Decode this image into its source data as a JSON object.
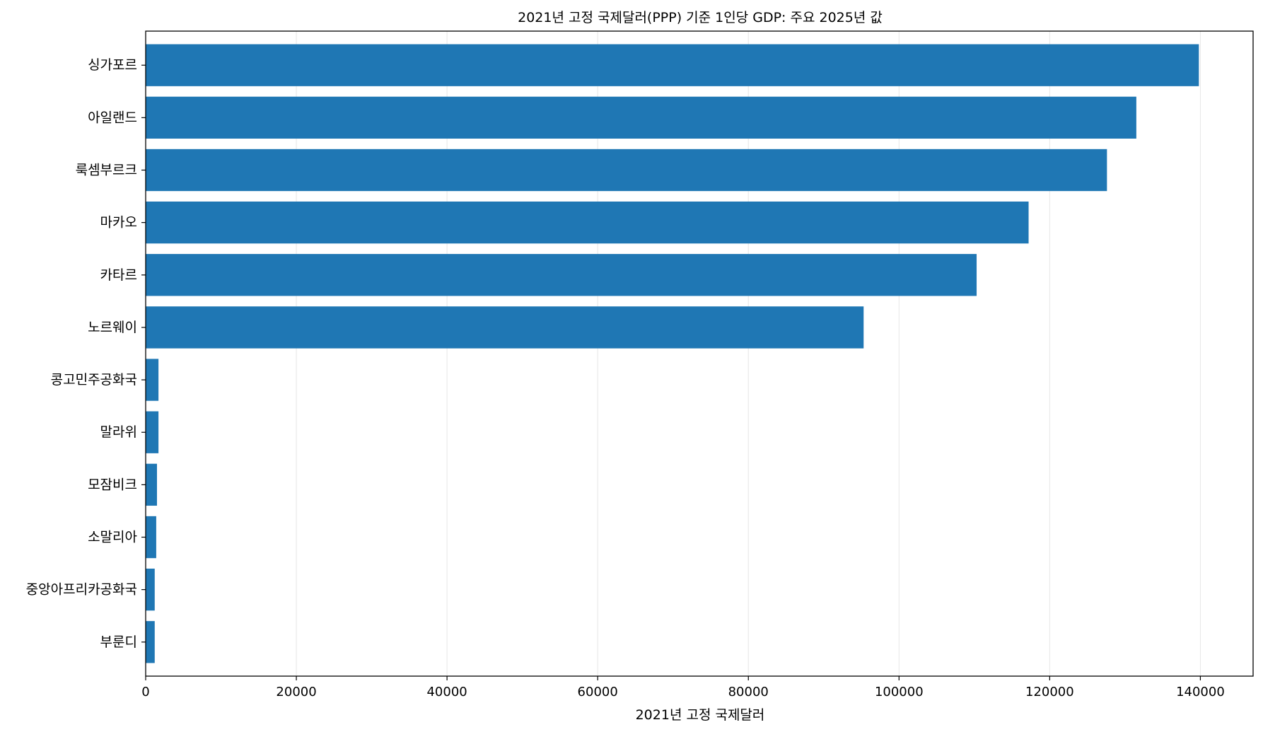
{
  "chart_data": {
    "type": "bar",
    "orientation": "horizontal",
    "title": "2021년 고정 국제달러(PPP) 기준 1인당 GDP: 주요 2025년 값",
    "xlabel": "2021년 고정 국제달러",
    "ylabel": "",
    "xlim": [
      0,
      147000
    ],
    "xticks": [
      "0",
      "20000",
      "40000",
      "60000",
      "80000",
      "100000",
      "120000",
      "140000"
    ],
    "grid": "x",
    "bar_color": "#1f77b4",
    "categories": [
      "싱가포르",
      "아일랜드",
      "룩셈부르크",
      "마카오",
      "카타르",
      "노르웨이",
      "콩고민주공화국",
      "말라위",
      "모잠비크",
      "소말리아",
      "중앙아프리카공화국",
      "부룬디"
    ],
    "values": [
      139800,
      131500,
      127600,
      117200,
      110300,
      95300,
      1700,
      1700,
      1500,
      1400,
      1200,
      1200
    ]
  }
}
